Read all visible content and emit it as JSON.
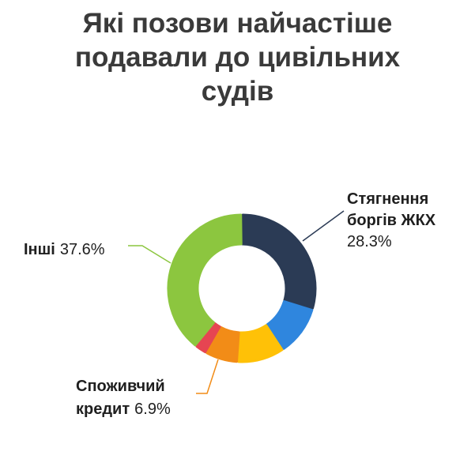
{
  "title_lines": [
    "Які позови найчастіше",
    "подавали до цивільних",
    "судів"
  ],
  "chart_data": {
    "type": "pie",
    "title": "Які позови найчастіше подавали до цивільних судів",
    "categories": [
      "Стягнення боргів ЖКХ",
      "",
      "",
      "Споживчий кредит",
      "",
      "Інші"
    ],
    "values": [
      28.3,
      10.5,
      9.9,
      6.9,
      2.5,
      37.6
    ],
    "colors": [
      "#2b3b55",
      "#2f86de",
      "#ffc107",
      "#f28c17",
      "#e64552",
      "#8cc63f"
    ],
    "labels": [
      {
        "lines": [
          "Стягнення",
          "боргів ЖКХ"
        ],
        "value": "28.3%"
      },
      {
        "lines": [
          "Інші"
        ],
        "value": "37.6%"
      },
      {
        "lines": [
          "Споживчий",
          "кредит"
        ],
        "value": "6.9%"
      }
    ]
  }
}
